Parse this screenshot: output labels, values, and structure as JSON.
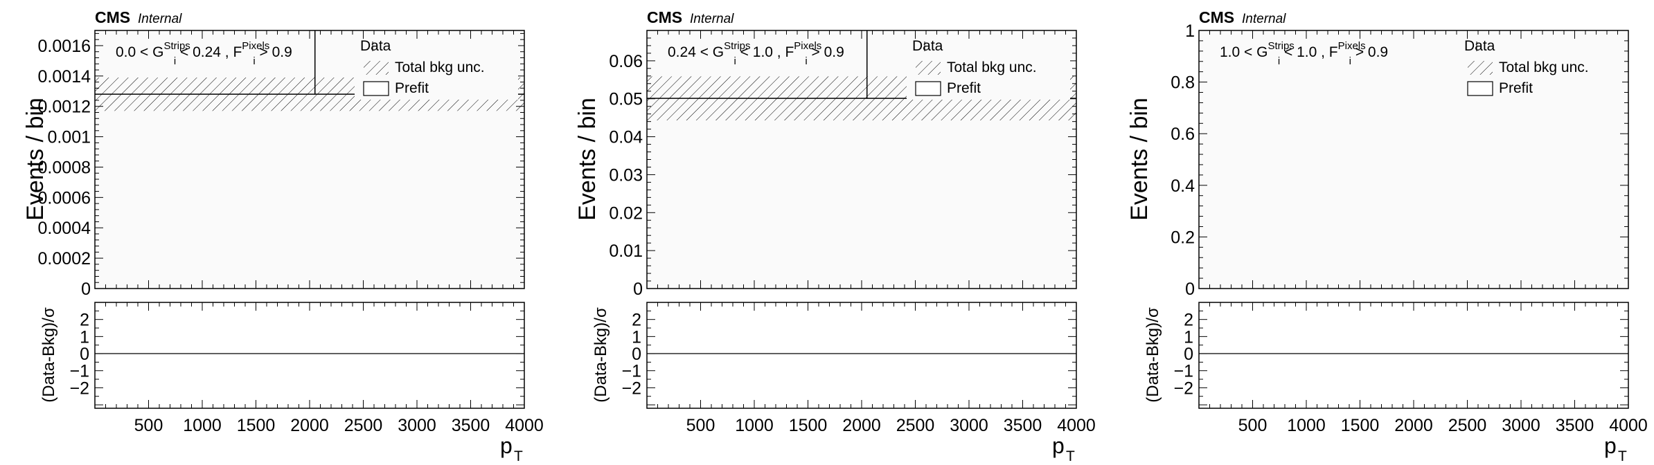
{
  "chart_data": [
    {
      "type": "bar",
      "experiment": "CMS",
      "status": "Internal",
      "selection": {
        "prefix": "0.0 < G",
        "g_sup": "Strips",
        "g_sub": "i",
        "mid": " < 0.24 , F",
        "f_sup": "Pixels",
        "f_sub": "i",
        "suffix": " > 0.9"
      },
      "ylabel": "Events / bin",
      "ratio_ylabel": "(Data-Bkg)/σ",
      "xlabel": "p",
      "xlabel_sub": "T",
      "xlim": [
        0,
        4000
      ],
      "ylim": [
        0,
        0.0017
      ],
      "yticks": [
        0,
        0.0002,
        0.0004,
        0.0006,
        0.0008,
        0.001,
        0.0012,
        0.0014,
        0.0016
      ],
      "ytick_labels": [
        "0",
        "0.0002",
        "0.0004",
        "0.0006",
        "0.0008",
        "0.001",
        "0.0012",
        "0.0014",
        "0.0016"
      ],
      "xticks": [
        500,
        1000,
        1500,
        2000,
        2500,
        3000,
        3500,
        4000
      ],
      "xtick_labels": [
        "500",
        "1000",
        "1500",
        "2000",
        "2500",
        "3000",
        "3500",
        "4000"
      ],
      "ratio_ylim": [
        -3.2,
        3
      ],
      "ratio_yticks": [
        -2,
        -1,
        0,
        1,
        2
      ],
      "ratio_ytick_labels": [
        "−2",
        "−1",
        "0",
        "1",
        "2"
      ],
      "prefit_value": 0.00128,
      "band_low": 0.00117,
      "band_high": 0.00139,
      "data_x": 2050,
      "legend": {
        "data": "Data",
        "unc": "Total bkg unc.",
        "prefit": "Prefit"
      },
      "legend_placement": "top-right"
    },
    {
      "type": "bar",
      "experiment": "CMS",
      "status": "Internal",
      "selection": {
        "prefix": "0.24 < G",
        "g_sup": "Strips",
        "g_sub": "i",
        "mid": " < 1.0 , F",
        "f_sup": "Pixels",
        "f_sub": "i",
        "suffix": " > 0.9"
      },
      "ylabel": "Events / bin",
      "ratio_ylabel": "(Data-Bkg)/σ",
      "xlabel": "p",
      "xlabel_sub": "T",
      "xlim": [
        0,
        4000
      ],
      "ylim": [
        0,
        0.068
      ],
      "yticks": [
        0,
        0.01,
        0.02,
        0.03,
        0.04,
        0.05,
        0.06
      ],
      "ytick_labels": [
        "0",
        "0.01",
        "0.02",
        "0.03",
        "0.04",
        "0.05",
        "0.06"
      ],
      "xticks": [
        500,
        1000,
        1500,
        2000,
        2500,
        3000,
        3500,
        4000
      ],
      "xtick_labels": [
        "500",
        "1000",
        "1500",
        "2000",
        "2500",
        "3000",
        "3500",
        "4000"
      ],
      "ratio_ylim": [
        -3.2,
        3
      ],
      "ratio_yticks": [
        -2,
        -1,
        0,
        1,
        2
      ],
      "ratio_ytick_labels": [
        "−2",
        "−1",
        "0",
        "1",
        "2"
      ],
      "prefit_value": 0.0501,
      "band_low": 0.0443,
      "band_high": 0.0559,
      "data_x": 2050,
      "legend": {
        "data": "Data",
        "unc": "Total bkg unc.",
        "prefit": "Prefit"
      },
      "legend_placement": "top-right"
    },
    {
      "type": "bar",
      "experiment": "CMS",
      "status": "Internal",
      "selection": {
        "prefix": "1.0 < G",
        "g_sup": "Strips",
        "g_sub": "i",
        "mid": " < 1.0 , F",
        "f_sup": "Pixels",
        "f_sub": "i",
        "suffix": " > 0.9"
      },
      "ylabel": "Events / bin",
      "ratio_ylabel": "(Data-Bkg)/σ",
      "xlabel": "p",
      "xlabel_sub": "T",
      "xlim": [
        0,
        4000
      ],
      "ylim": [
        0,
        1
      ],
      "yticks": [
        0,
        0.2,
        0.4,
        0.6,
        0.8,
        1
      ],
      "ytick_labels": [
        "0",
        "0.2",
        "0.4",
        "0.6",
        "0.8",
        "1"
      ],
      "xticks": [
        500,
        1000,
        1500,
        2000,
        2500,
        3000,
        3500,
        4000
      ],
      "xtick_labels": [
        "500",
        "1000",
        "1500",
        "2000",
        "2500",
        "3000",
        "3500",
        "4000"
      ],
      "ratio_ylim": [
        -3.2,
        3
      ],
      "ratio_yticks": [
        -2,
        -1,
        0,
        1,
        2
      ],
      "ratio_ytick_labels": [
        "−2",
        "−1",
        "0",
        "1",
        "2"
      ],
      "prefit_value": 0,
      "band_low": 0,
      "band_high": 0,
      "data_x": 2050,
      "legend": {
        "data": "Data",
        "unc": "Total bkg unc.",
        "prefit": "Prefit"
      },
      "legend_placement": "top-right"
    }
  ]
}
